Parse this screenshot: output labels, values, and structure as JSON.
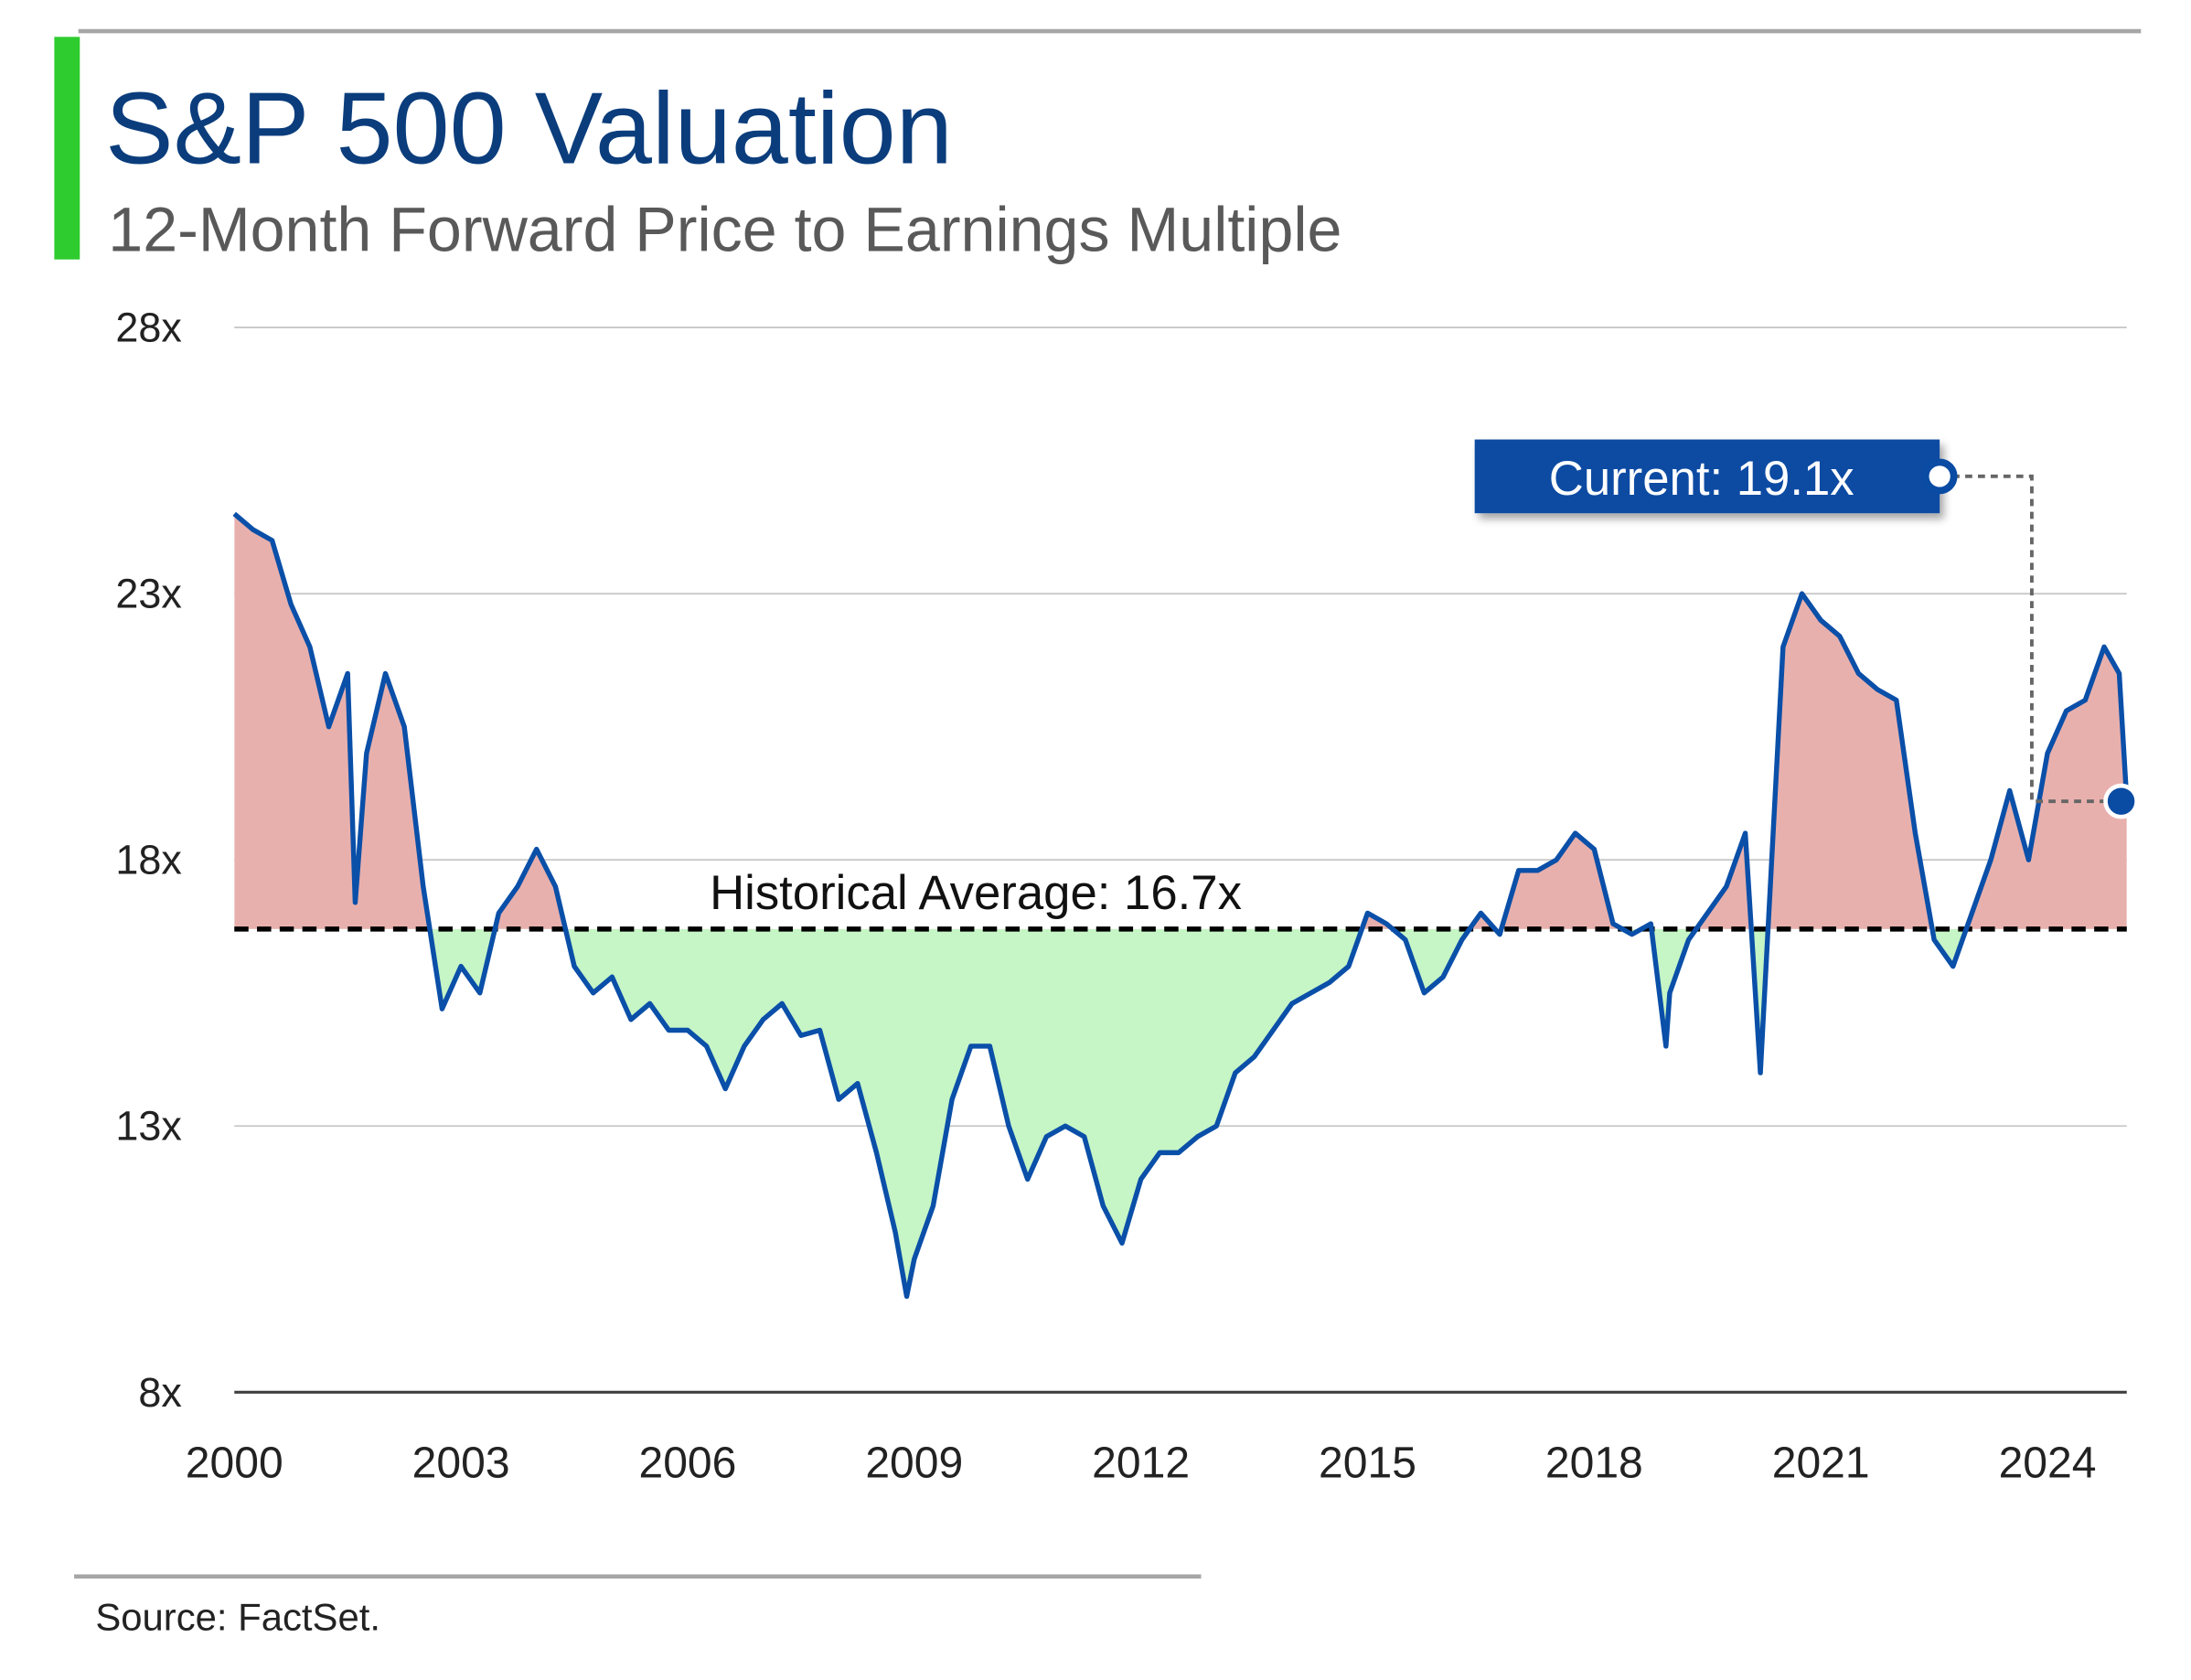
{
  "chart_data": {
    "type": "line",
    "title": "S&P 500 Valuation",
    "subtitle": "12-Month Forward Price to Earnings Multiple",
    "source": "Source: FactSet.",
    "x": [
      2000.0,
      2000.25,
      2000.5,
      2000.75,
      2001.0,
      2001.25,
      2001.5,
      2001.6,
      2001.75,
      2002.0,
      2002.25,
      2002.5,
      2002.75,
      2003.0,
      2003.25,
      2003.5,
      2003.75,
      2004.0,
      2004.25,
      2004.5,
      2004.75,
      2005.0,
      2005.25,
      2005.5,
      2005.75,
      2006.0,
      2006.25,
      2006.5,
      2006.75,
      2007.0,
      2007.25,
      2007.5,
      2007.75,
      2008.0,
      2008.25,
      2008.5,
      2008.75,
      2008.9,
      2009.0,
      2009.25,
      2009.5,
      2009.75,
      2010.0,
      2010.25,
      2010.5,
      2010.75,
      2011.0,
      2011.25,
      2011.5,
      2011.75,
      2012.0,
      2012.25,
      2012.5,
      2012.75,
      2013.0,
      2013.25,
      2013.5,
      2013.75,
      2014.0,
      2014.25,
      2014.5,
      2014.75,
      2015.0,
      2015.25,
      2015.5,
      2015.75,
      2016.0,
      2016.25,
      2016.5,
      2016.75,
      2017.0,
      2017.25,
      2017.5,
      2017.75,
      2018.0,
      2018.25,
      2018.5,
      2018.75,
      2018.95,
      2019.0,
      2019.25,
      2019.5,
      2019.75,
      2020.0,
      2020.2,
      2020.5,
      2020.75,
      2021.0,
      2021.25,
      2021.5,
      2021.75,
      2022.0,
      2022.25,
      2022.5,
      2022.75,
      2023.0,
      2023.25,
      2023.5,
      2023.75,
      2024.0,
      2024.25,
      2024.5,
      2024.75,
      2024.95,
      2025.05
    ],
    "values": [
      24.5,
      24.2,
      24.0,
      22.8,
      22.0,
      20.5,
      21.5,
      17.2,
      20.0,
      21.5,
      20.5,
      17.5,
      15.2,
      16.0,
      15.5,
      17.0,
      17.5,
      18.2,
      17.5,
      16.0,
      15.5,
      15.8,
      15.0,
      15.3,
      14.8,
      14.8,
      14.5,
      13.7,
      14.5,
      15.0,
      15.3,
      14.7,
      14.8,
      13.5,
      13.8,
      12.5,
      11.0,
      9.8,
      10.5,
      11.5,
      13.5,
      14.5,
      14.5,
      13.0,
      12.0,
      12.8,
      13.0,
      12.8,
      11.5,
      10.8,
      12.0,
      12.5,
      12.5,
      12.8,
      13.0,
      14.0,
      14.3,
      14.8,
      15.3,
      15.5,
      15.7,
      16.0,
      17.0,
      16.8,
      16.5,
      15.5,
      15.8,
      16.5,
      17.0,
      16.6,
      17.8,
      17.8,
      18.0,
      18.5,
      18.2,
      16.8,
      16.6,
      16.8,
      14.5,
      15.5,
      16.5,
      17.0,
      17.5,
      18.5,
      14.0,
      22.0,
      23.0,
      22.5,
      22.2,
      21.5,
      21.2,
      21.0,
      18.5,
      16.5,
      16.0,
      17.0,
      18.0,
      19.3,
      18.0,
      20.0,
      20.8,
      21.0,
      22.0,
      21.5,
      19.1
    ],
    "color": "#0a4fa8",
    "above_color": "#e8b0ad",
    "below_color": "#c6f5c6",
    "xlim": [
      2000,
      2025.05
    ],
    "ylim": [
      8,
      28
    ],
    "xticks": [
      2000,
      2003,
      2006,
      2009,
      2012,
      2015,
      2018,
      2021,
      2024
    ],
    "yticks": [
      {
        "value": 8,
        "label": "8x"
      },
      {
        "value": 13,
        "label": "13x"
      },
      {
        "value": 18,
        "label": "18x"
      },
      {
        "value": 23,
        "label": "23x"
      },
      {
        "value": 28,
        "label": "28x"
      }
    ],
    "grid": true,
    "average": {
      "value": 16.7,
      "label": "Historical Average: 16.7x"
    },
    "current": {
      "value": 19.1,
      "label": "Current: 19.1x"
    }
  }
}
